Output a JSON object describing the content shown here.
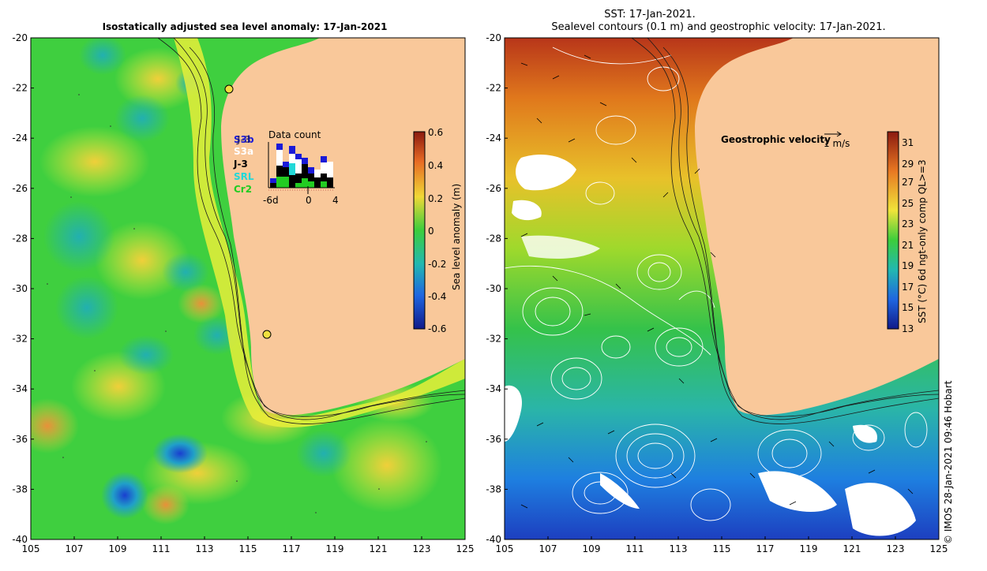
{
  "left_panel": {
    "title": "Isostatically adjusted sea level anomaly: 17-Jan-2021",
    "colorbar_label": "Sea level anomaly (m)",
    "colorbar_ticks": [
      "0.6",
      "0.4",
      "0.2",
      "0",
      "-0.2",
      "-0.4",
      "-0.6"
    ],
    "data_count": {
      "title": "Data count",
      "satellites": [
        "S3b",
        "J-3",
        "SRL",
        "S3a",
        "J-3",
        "SRL",
        "Cr2"
      ],
      "axis_labels": [
        "-6d",
        "0",
        "4"
      ]
    }
  },
  "right_panel": {
    "title_line1": "SST: 17-Jan-2021.",
    "title_line2": "Sealevel contours (0.1 m) and geostrophic velocity: 17-Jan-2021.",
    "colorbar_label": "SST (°C) 6d ngt-only comp QL>=3",
    "colorbar_ticks": [
      "31",
      "29",
      "27",
      "25",
      "23",
      "21",
      "19",
      "17",
      "15",
      "13"
    ],
    "velocity_label": "Geostrophic velocity",
    "velocity_scale": "1 m/s"
  },
  "axes": {
    "lat_ticks": [
      "-20",
      "-22",
      "-24",
      "-26",
      "-28",
      "-30",
      "-32",
      "-34",
      "-36",
      "-38",
      "-40"
    ],
    "lon_ticks": [
      "105",
      "107",
      "109",
      "111",
      "113",
      "115",
      "117",
      "119",
      "121",
      "123",
      "125"
    ]
  },
  "credit": "© IMOS 28-Jan-2021 09:46 Hobart",
  "colors": {
    "land": "#f9c89a",
    "sla_green": "#3fcf3f",
    "sla_yellow": "#e7ef3a",
    "sst_warm": "#e0781c",
    "sst_cool": "#1e8cd8"
  }
}
